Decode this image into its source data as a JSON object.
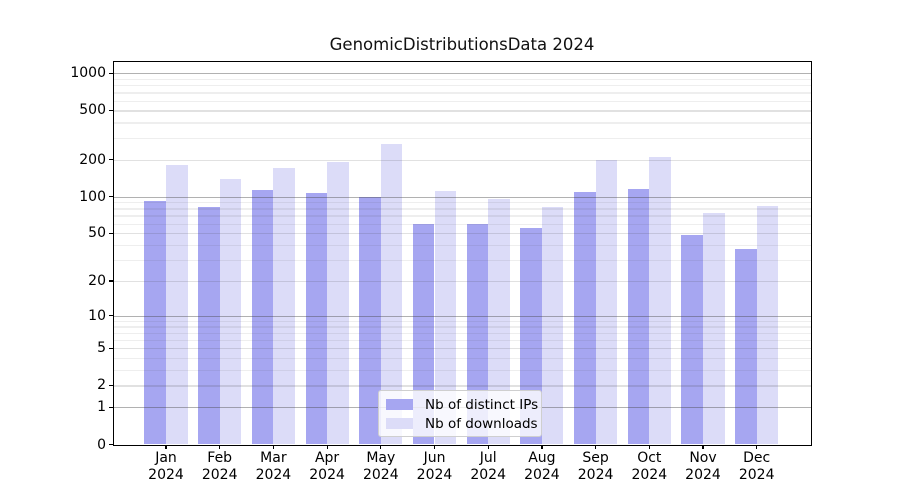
{
  "figure": {
    "title": "GenomicDistributionsData 2024",
    "background_color": "#ffffff"
  },
  "axes": {
    "ytick_labels": [
      "0",
      "1",
      "2",
      "5",
      "10",
      "20",
      "50",
      "100",
      "200",
      "500",
      "1000"
    ],
    "spine_color": "#000000",
    "grid_major_color": "#b5b5b5",
    "grid_mid_color": "#e2e2e2",
    "grid_minor_color": "#efefef"
  },
  "legend": {
    "items": [
      {
        "label": "Nb of distinct IPs",
        "color": "#a6a6f1"
      },
      {
        "label": "Nb of downloads",
        "color": "#dcdcf8"
      }
    ]
  },
  "chart_data": {
    "type": "bar",
    "title": "GenomicDistributionsData 2024",
    "categories": [
      "Jan 2024",
      "Feb 2024",
      "Mar 2024",
      "Apr 2024",
      "May 2024",
      "Jun 2024",
      "Jul 2024",
      "Aug 2024",
      "Sep 2024",
      "Oct 2024",
      "Nov 2024",
      "Dec 2024"
    ],
    "series": [
      {
        "name": "Nb of distinct IPs",
        "color": "#a6a6f1",
        "values": [
          92,
          82,
          114,
          106,
          100,
          60,
          59,
          55,
          108,
          115,
          48,
          37
        ]
      },
      {
        "name": "Nb of downloads",
        "color": "#dcdcf8",
        "values": [
          182,
          138,
          170,
          190,
          265,
          110,
          95,
          82,
          200,
          210,
          73,
          84
        ]
      }
    ],
    "xlabel": "",
    "ylabel": "",
    "yscale": "log10(value+1)",
    "yticks": [
      0,
      1,
      2,
      5,
      10,
      20,
      50,
      100,
      200,
      500,
      1000
    ],
    "yticks_minor": [
      3,
      4,
      6,
      7,
      8,
      9,
      30,
      40,
      60,
      70,
      80,
      90,
      300,
      400,
      600,
      700,
      800,
      900
    ],
    "ylim": [
      0,
      1250
    ],
    "grid": "on",
    "legend_position": "lower center inside"
  }
}
